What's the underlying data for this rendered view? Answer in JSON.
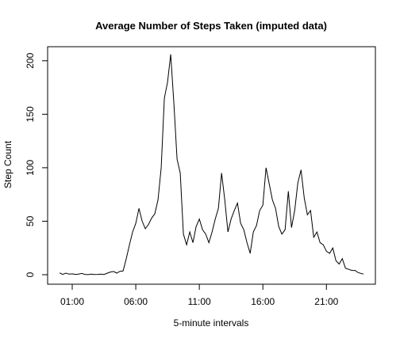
{
  "chart_data": {
    "type": "line",
    "title": "Average Number of Steps Taken (imputed data)",
    "xlabel": "5-minute intervals",
    "ylabel": "Step Count",
    "xlim": [
      "00:00",
      "23:55"
    ],
    "ylim": [
      0,
      210
    ],
    "x_ticks": [
      "01:00",
      "06:00",
      "11:00",
      "16:00",
      "21:00"
    ],
    "y_ticks": [
      0,
      50,
      100,
      150,
      200
    ],
    "grid": false,
    "line_color": "#000000",
    "series": [
      {
        "x": [
          "00:00",
          "00:15",
          "00:30",
          "00:45",
          "01:00",
          "01:15",
          "01:30",
          "01:45",
          "02:00",
          "02:15",
          "02:30",
          "02:45",
          "03:00",
          "03:15",
          "03:30",
          "03:45",
          "04:00",
          "04:15",
          "04:30",
          "04:45",
          "05:00",
          "05:15",
          "05:30",
          "05:45",
          "06:00",
          "06:15",
          "06:30",
          "06:45",
          "07:00",
          "07:15",
          "07:30",
          "07:45",
          "08:00",
          "08:15",
          "08:30",
          "08:45",
          "09:00",
          "09:15",
          "09:30",
          "09:45",
          "10:00",
          "10:15",
          "10:30",
          "10:45",
          "11:00",
          "11:15",
          "11:30",
          "11:45",
          "12:00",
          "12:15",
          "12:30",
          "12:45",
          "13:00",
          "13:15",
          "13:30",
          "13:45",
          "14:00",
          "14:15",
          "14:30",
          "14:45",
          "15:00",
          "15:15",
          "15:30",
          "15:45",
          "16:00",
          "16:15",
          "16:30",
          "16:45",
          "17:00",
          "17:15",
          "17:30",
          "17:45",
          "18:00",
          "18:15",
          "18:30",
          "18:45",
          "19:00",
          "19:15",
          "19:30",
          "19:45",
          "20:00",
          "20:15",
          "20:30",
          "20:45",
          "21:00",
          "21:15",
          "21:30",
          "21:45",
          "22:00",
          "22:15",
          "22:30",
          "22:45",
          "23:00",
          "23:15",
          "23:30",
          "23:55"
        ],
        "values": [
          1.7,
          0.3,
          1.5,
          0.5,
          0.8,
          0.3,
          0.5,
          1.2,
          0.3,
          0.1,
          0.6,
          0.2,
          0.3,
          0.5,
          0.2,
          1.4,
          2.5,
          3.0,
          1.5,
          3.2,
          3.5,
          15,
          28,
          40,
          48,
          62,
          50,
          43,
          47,
          53,
          57,
          70,
          100,
          165,
          180,
          206,
          160,
          108,
          95,
          38,
          28,
          40,
          30,
          45,
          52,
          42,
          38,
          30,
          40,
          52,
          62,
          95,
          70,
          40,
          52,
          60,
          67,
          48,
          42,
          30,
          20,
          40,
          46,
          60,
          65,
          100,
          85,
          70,
          62,
          45,
          38,
          42,
          78,
          44,
          60,
          86,
          98,
          72,
          56,
          60,
          35,
          40,
          30,
          28,
          22,
          20,
          25,
          13,
          10,
          15,
          6,
          5,
          4,
          4,
          2,
          0.5
        ]
      }
    ]
  }
}
